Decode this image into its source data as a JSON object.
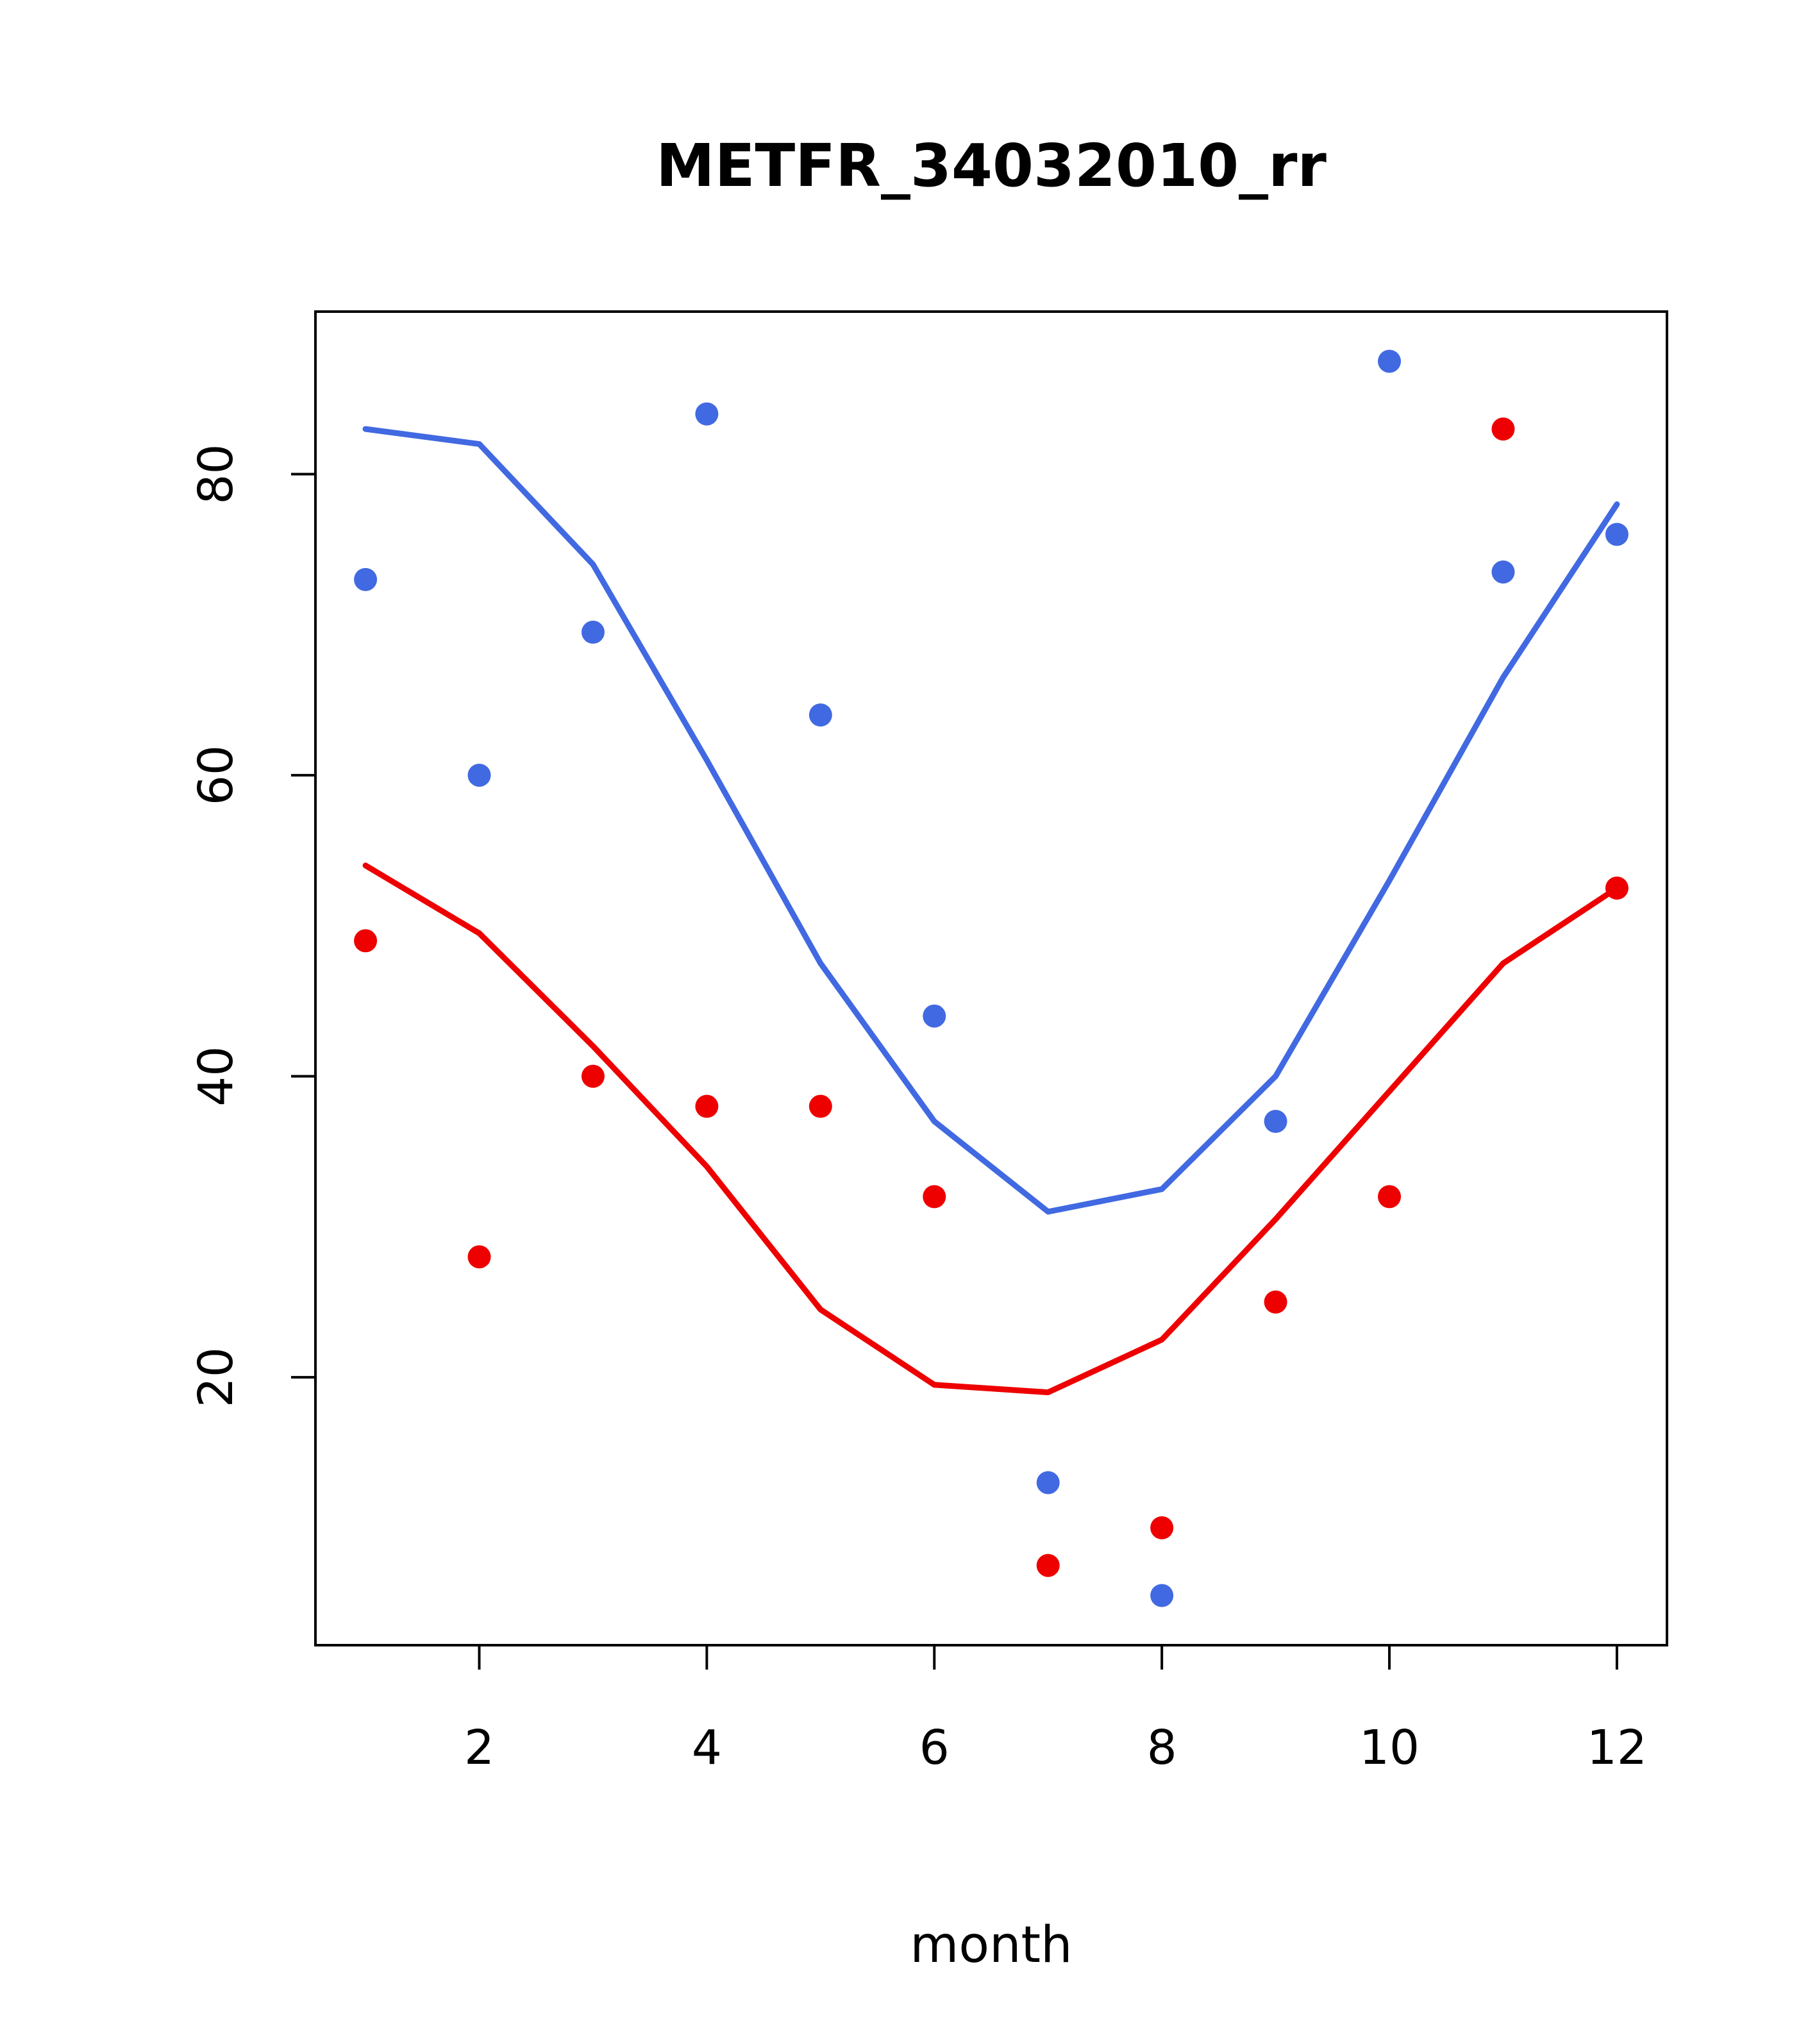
{
  "chart_data": {
    "type": "scatter",
    "title": "METFR_34032010_rr",
    "xlabel": "month",
    "ylabel": "",
    "xlim": [
      0.56,
      12.44
    ],
    "ylim": [
      2.2,
      90.8
    ],
    "x_ticks": [
      2,
      4,
      6,
      8,
      10,
      12
    ],
    "y_ticks": [
      20,
      40,
      60,
      80
    ],
    "grid": false,
    "legend": "none",
    "x": [
      1,
      2,
      3,
      4,
      5,
      6,
      7,
      8,
      9,
      10,
      11,
      12
    ],
    "series": [
      {
        "name": "blue-line",
        "type": "line",
        "color": "#4169E1",
        "values": [
          83,
          82,
          74,
          61,
          47.5,
          37,
          31,
          32.5,
          40,
          53,
          66.5,
          78
        ]
      },
      {
        "name": "red-line",
        "type": "line",
        "color": "#EE0000",
        "values": [
          54,
          49.5,
          42,
          34,
          24.5,
          19.5,
          19,
          22.5,
          30.5,
          39,
          47.5,
          52.5
        ]
      },
      {
        "name": "blue-points",
        "type": "points",
        "color": "#4169E1",
        "values": [
          73,
          60,
          69.5,
          84,
          64,
          44,
          13,
          5.5,
          37,
          87.5,
          73.5,
          76
        ]
      },
      {
        "name": "red-points",
        "type": "points",
        "color": "#EE0000",
        "values": [
          49,
          28,
          40,
          38,
          38,
          32,
          7.5,
          10,
          25,
          32,
          83,
          52.5
        ]
      }
    ]
  }
}
